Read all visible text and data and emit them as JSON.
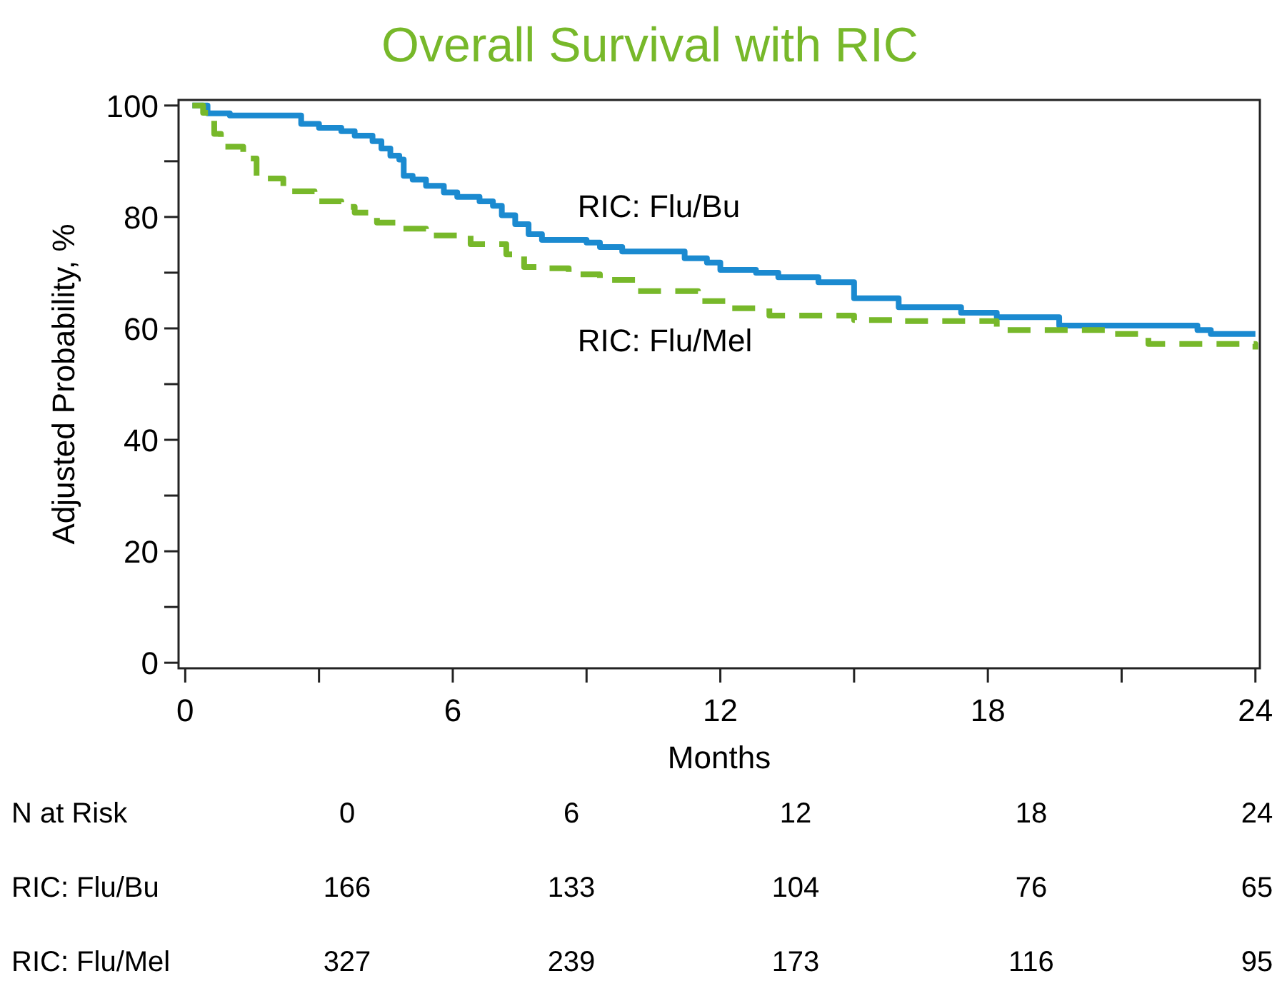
{
  "chart_data": {
    "type": "step",
    "title": "Overall Survival with RIC",
    "xlabel": "Months",
    "ylabel": "Adjusted Probability, %",
    "xlim": [
      -0.15,
      24.1
    ],
    "ylim": [
      -1,
      101
    ],
    "xticks": [
      0,
      {
        "value": 3,
        "label": null
      },
      6,
      {
        "value": 9,
        "label": null
      },
      12,
      {
        "value": 15,
        "label": null
      },
      18,
      {
        "value": 21,
        "label": null
      },
      24
    ],
    "yticks": [
      0,
      {
        "value": 10,
        "label": null
      },
      20,
      {
        "value": 30,
        "label": null
      },
      40,
      {
        "value": 50,
        "label": null
      },
      60,
      {
        "value": 70,
        "label": null
      },
      80,
      {
        "value": 90,
        "label": null
      },
      100
    ],
    "grid": false,
    "legend": false,
    "series": [
      {
        "name": "RIC: Flu/Bu",
        "color": "#1b8ad0",
        "line_style": "solid",
        "x": [
          0.16,
          0.5,
          1.0,
          2.6,
          3.0,
          3.5,
          3.8,
          4.2,
          4.4,
          4.6,
          4.8,
          4.9,
          5.1,
          5.4,
          5.8,
          6.1,
          6.6,
          6.9,
          7.1,
          7.4,
          7.7,
          8.0,
          9.0,
          9.3,
          9.8,
          10.9,
          11.2,
          11.7,
          12.0,
          12.8,
          13.3,
          14.2,
          15.0,
          16.0,
          17.4,
          18.2,
          19.6,
          22.7,
          23.0,
          24.0
        ],
        "values": [
          100,
          98.6,
          98.2,
          96.7,
          96,
          95.4,
          94.6,
          93.6,
          92.3,
          91,
          90.3,
          87.4,
          86.7,
          85.6,
          84.4,
          83.6,
          82.8,
          82,
          80.3,
          78.7,
          76.9,
          75.9,
          75.4,
          74.6,
          73.8,
          73.8,
          72.6,
          71.8,
          70.5,
          70,
          69.2,
          68.3,
          65.4,
          63.8,
          62.8,
          62,
          60.5,
          59.7,
          59,
          59
        ]
      },
      {
        "name": "RIC: Flu/Mel",
        "color": "#77b82a",
        "line_style": "dashed",
        "x": [
          0.16,
          0.4,
          0.65,
          0.8,
          1.3,
          1.6,
          2.2,
          2.9,
          3.5,
          3.8,
          4.3,
          4.8,
          5.4,
          6.4,
          7.2,
          7.6,
          8.0,
          8.6,
          9.3,
          10.1,
          11.5,
          12.2,
          13.1,
          15.0,
          16.0,
          18.2,
          20.8,
          21.6,
          24.0
        ],
        "values": [
          100,
          98.7,
          94.9,
          92.6,
          90.5,
          86.9,
          84.6,
          82.8,
          81.8,
          80.8,
          79,
          77.9,
          76.7,
          75.1,
          73.3,
          71,
          70.8,
          69.7,
          68.7,
          66.7,
          64.9,
          63.6,
          62.3,
          61.5,
          61.3,
          59.7,
          59,
          57.2,
          56.2
        ]
      }
    ],
    "annotations": [
      "N at Risk",
      "0",
      "6",
      "12",
      "18",
      "24",
      "RIC: Flu/Bu",
      "166",
      "133",
      "104",
      "76",
      "65",
      "RIC: Flu/Mel",
      "327",
      "239",
      "173",
      "116",
      "95"
    ]
  }
}
